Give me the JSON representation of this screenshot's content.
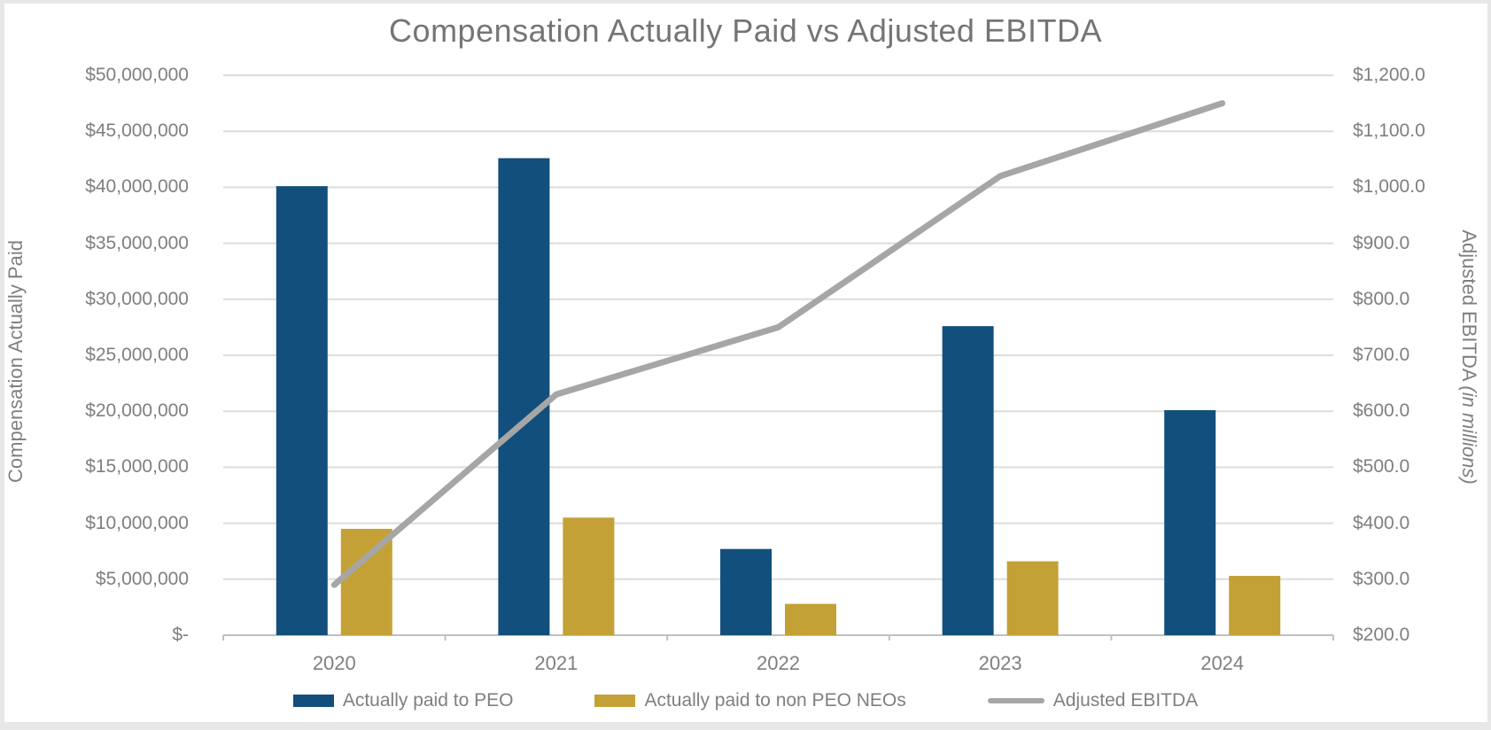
{
  "title": "Compensation Actually Paid vs Adjusted EBITDA",
  "colors": {
    "peo_bar": "#124f7c",
    "neo_bar": "#c4a136",
    "ebitda_line": "#a6a6a6",
    "gridline": "#dcdcdc",
    "axis_line": "#c0c0c0",
    "text": "#7f7f7f",
    "title_text": "#757575",
    "frame": "#e7e7e7",
    "background": "#ffffff"
  },
  "left_axis": {
    "title": "Compensation Actually Paid",
    "tick_labels": [
      "$-",
      "$5,000,000",
      "$10,000,000",
      "$15,000,000",
      "$20,000,000",
      "$25,000,000",
      "$30,000,000",
      "$35,000,000",
      "$40,000,000",
      "$45,000,000",
      "$50,000,000"
    ]
  },
  "right_axis": {
    "title_main": "Adjusted EBITDA ",
    "title_italic": "(in millions)",
    "tick_labels": [
      "$200.0",
      "$300.0",
      "$400.0",
      "$500.0",
      "$600.0",
      "$700.0",
      "$800.0",
      "$900.0",
      "$1,000.0",
      "$1,100.0",
      "$1,200.0"
    ]
  },
  "chart_data": {
    "type": "combo-bar-line",
    "title": "Compensation Actually Paid vs Adjusted EBITDA",
    "categories": [
      "2020",
      "2021",
      "2022",
      "2023",
      "2024"
    ],
    "series": [
      {
        "name": "Actually paid to PEO",
        "type": "bar",
        "axis": "left",
        "color": "#124f7c",
        "values": [
          40100000,
          42600000,
          7700000,
          27600000,
          20100000
        ]
      },
      {
        "name": "Actually paid to non PEO NEOs",
        "type": "bar",
        "axis": "left",
        "color": "#c4a136",
        "values": [
          9500000,
          10500000,
          2800000,
          6600000,
          5300000
        ]
      },
      {
        "name": "Adjusted EBITDA",
        "type": "line",
        "axis": "right",
        "color": "#a6a6a6",
        "values": [
          290,
          630,
          750,
          1020,
          1150
        ]
      }
    ],
    "left_ylabel": "Compensation Actually Paid",
    "right_ylabel": "Adjusted EBITDA (in millions)",
    "left_ylim": [
      0,
      50000000
    ],
    "left_step": 5000000,
    "right_ylim": [
      200,
      1200
    ],
    "right_step": 100,
    "grid": true,
    "legend_position": "bottom"
  }
}
